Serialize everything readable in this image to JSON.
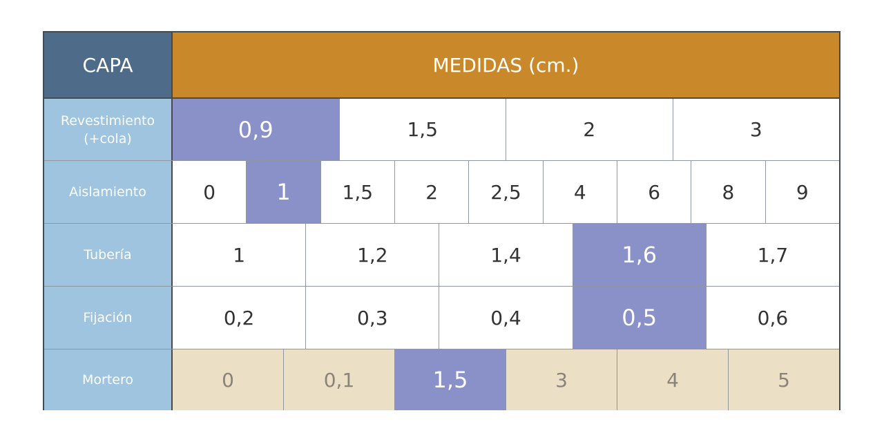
{
  "header": {
    "layer_title": "CAPA",
    "measures_title": "MEDIDAS (cm.)"
  },
  "colors": {
    "layer_header": "#4e6b89",
    "measures_header": "#c9892a",
    "row_label": "#9ec4df",
    "selected": "#8a91c8",
    "cell": "#ffffff",
    "mortero_cell": "#ebdfc6"
  },
  "rows": [
    {
      "label": "Revestimiento\n(+cola)",
      "values": [
        "0,9",
        "1,5",
        "2",
        "3"
      ],
      "selected_index": 0
    },
    {
      "label": "Aislamiento",
      "values": [
        "0",
        "1",
        "1,5",
        "2",
        "2,5",
        "4",
        "6",
        "8",
        "9"
      ],
      "selected_index": 1
    },
    {
      "label": "Tubería",
      "values": [
        "1",
        "1,2",
        "1,4",
        "1,6",
        "1,7"
      ],
      "selected_index": 3
    },
    {
      "label": "Fijación",
      "values": [
        "0,2",
        "0,3",
        "0,4",
        "0,5",
        "0,6"
      ],
      "selected_index": 3
    },
    {
      "label": "Mortero",
      "values": [
        "0",
        "0,1",
        "1,5",
        "3",
        "4",
        "5"
      ],
      "selected_index": 2
    }
  ]
}
